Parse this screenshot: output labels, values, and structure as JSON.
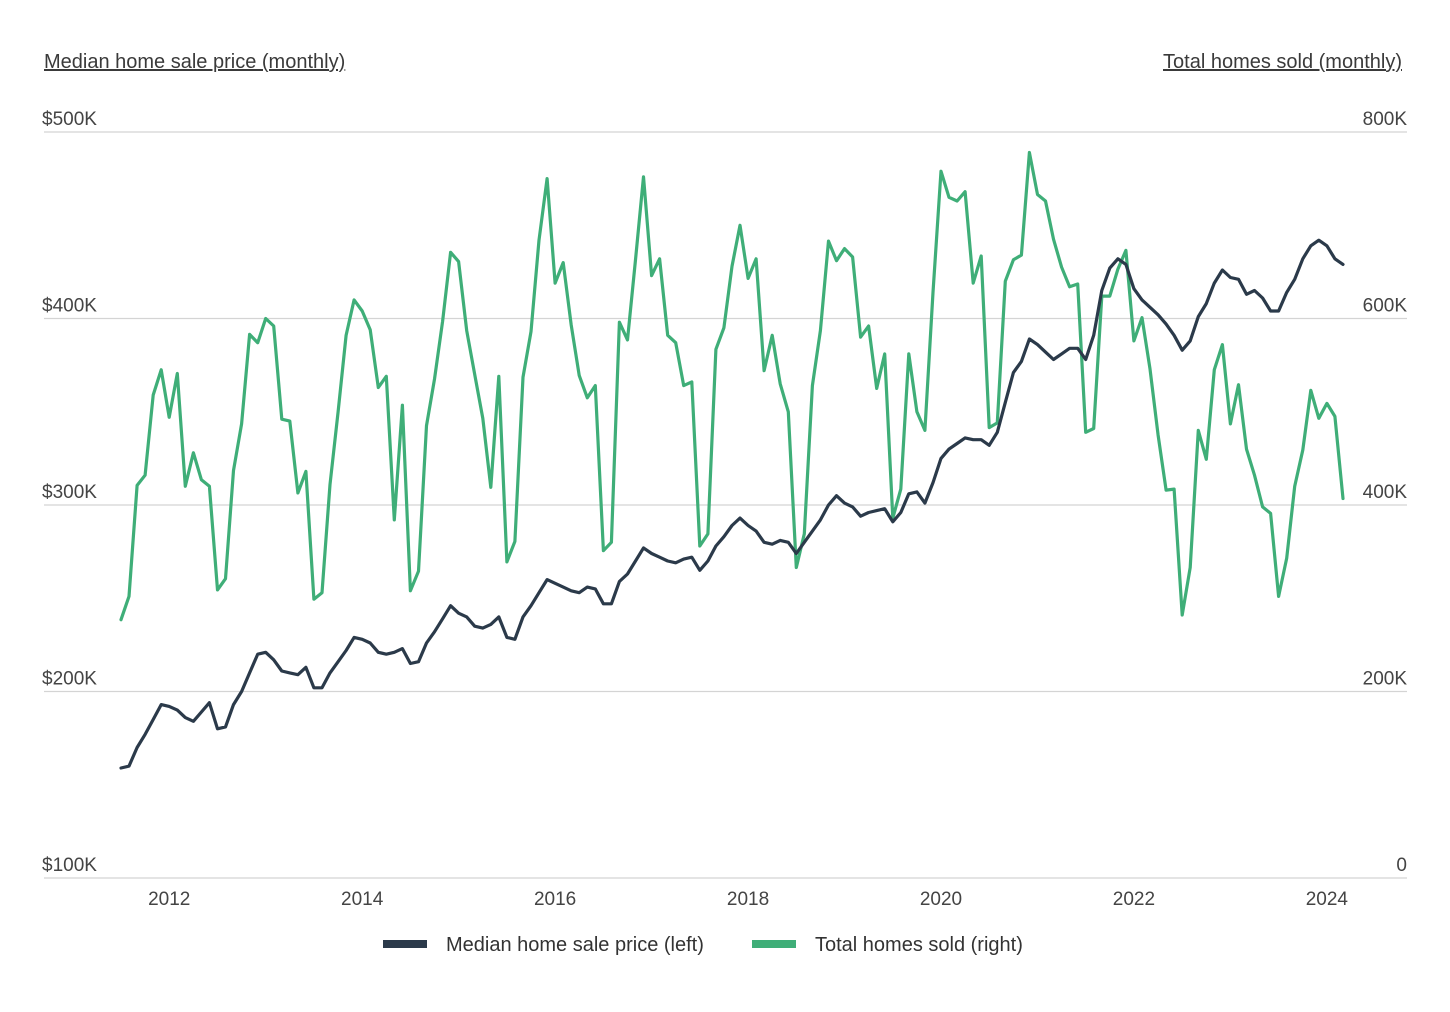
{
  "chart_data": {
    "type": "line",
    "y_left_title": "Median home sale price (monthly)",
    "y_right_title": "Total homes sold (monthly)",
    "y_left_ticks": [
      {
        "value": 100000,
        "label": "$100K"
      },
      {
        "value": 200000,
        "label": "$200K"
      },
      {
        "value": 300000,
        "label": "$300K"
      },
      {
        "value": 400000,
        "label": "$400K"
      },
      {
        "value": 500000,
        "label": "$500K"
      }
    ],
    "y_right_ticks": [
      {
        "value": 0,
        "label": "0"
      },
      {
        "value": 200000,
        "label": "200K"
      },
      {
        "value": 400000,
        "label": "400K"
      },
      {
        "value": 600000,
        "label": "600K"
      },
      {
        "value": 800000,
        "label": "800K"
      }
    ],
    "y_left_range": [
      100000,
      500000
    ],
    "y_right_range": [
      0,
      800000
    ],
    "x_range": [
      "2011-07",
      "2024-04"
    ],
    "x_ticks": [
      "2012",
      "2014",
      "2016",
      "2018",
      "2020",
      "2022",
      "2024"
    ],
    "grid": true,
    "legend_position": "bottom",
    "x_start": "2011-07",
    "series": [
      {
        "name": "Median home sale price (left)",
        "axis": "left",
        "color": "#2b3a4a",
        "values": [
          159000,
          160000,
          170000,
          177000,
          185000,
          193000,
          192000,
          190000,
          186000,
          184000,
          189000,
          194000,
          180000,
          181000,
          193000,
          200000,
          210000,
          220000,
          221000,
          217000,
          211000,
          210000,
          209000,
          213000,
          202000,
          202000,
          210000,
          216000,
          222000,
          229000,
          228000,
          226000,
          221000,
          220000,
          221000,
          223000,
          215000,
          216000,
          226000,
          232000,
          239000,
          246000,
          242000,
          240000,
          235000,
          234000,
          236000,
          240000,
          229000,
          228000,
          240000,
          246000,
          253000,
          260000,
          258000,
          256000,
          254000,
          253000,
          256000,
          255000,
          247000,
          247000,
          259000,
          263000,
          270000,
          277000,
          274000,
          272000,
          270000,
          269000,
          271000,
          272000,
          265000,
          270000,
          278000,
          283000,
          289000,
          293000,
          289000,
          286000,
          280000,
          279000,
          281000,
          280000,
          274000,
          280000,
          286000,
          292000,
          300000,
          305000,
          301000,
          299000,
          294000,
          296000,
          297000,
          298000,
          291000,
          296000,
          306000,
          307000,
          301000,
          312000,
          325000,
          330000,
          333000,
          336000,
          335000,
          335000,
          332000,
          339000,
          355000,
          371000,
          377000,
          389000,
          386000,
          382000,
          378000,
          381000,
          384000,
          384000,
          378000,
          391000,
          415000,
          427000,
          432000,
          429000,
          416000,
          410000,
          406000,
          402000,
          397000,
          391000,
          383000,
          388000,
          401000,
          408000,
          419000,
          426000,
          422000,
          421000,
          413000,
          415000,
          411000,
          404000,
          404000,
          414000,
          421000,
          432000,
          439000,
          442000,
          439000,
          432000,
          429000
        ]
      },
      {
        "name": "Total homes sold (right)",
        "axis": "right",
        "color": "#3fae78",
        "values": [
          277000,
          302000,
          421000,
          432000,
          518000,
          545000,
          494000,
          541000,
          420000,
          456000,
          427000,
          420000,
          309000,
          321000,
          437000,
          487000,
          583000,
          574000,
          600000,
          592000,
          492000,
          490000,
          413000,
          436000,
          299000,
          306000,
          422000,
          500000,
          582000,
          620000,
          608000,
          588000,
          526000,
          538000,
          384000,
          507000,
          308000,
          329000,
          485000,
          535000,
          597000,
          671000,
          661000,
          587000,
          540000,
          493000,
          419000,
          538000,
          339000,
          361000,
          537000,
          586000,
          684000,
          750000,
          638000,
          660000,
          593000,
          539000,
          515000,
          528000,
          351000,
          360000,
          596000,
          577000,
          663000,
          752000,
          646000,
          664000,
          582000,
          574000,
          528000,
          532000,
          356000,
          369000,
          567000,
          590000,
          656000,
          700000,
          643000,
          664000,
          544000,
          582000,
          530000,
          500000,
          333000,
          369000,
          528000,
          587000,
          683000,
          662000,
          675000,
          666000,
          580000,
          592000,
          525000,
          562000,
          386000,
          417000,
          562000,
          500000,
          480000,
          628000,
          758000,
          730000,
          726000,
          736000,
          638000,
          667000,
          483000,
          488000,
          640000,
          663000,
          668000,
          778000,
          733000,
          726000,
          685000,
          655000,
          634000,
          637000,
          478000,
          482000,
          624000,
          624000,
          653000,
          673000,
          576000,
          601000,
          546000,
          475000,
          416000,
          417000,
          282000,
          333000,
          480000,
          449000,
          545000,
          572000,
          487000,
          529000,
          460000,
          432000,
          398000,
          391000,
          302000,
          343000,
          420000,
          459000,
          523000,
          493000,
          509000,
          495000,
          407000
        ]
      }
    ]
  },
  "legend": {
    "items": [
      {
        "label": "Median home sale price (left)",
        "color": "#2b3a4a"
      },
      {
        "label": "Total homes sold (right)",
        "color": "#3fae78"
      }
    ]
  }
}
